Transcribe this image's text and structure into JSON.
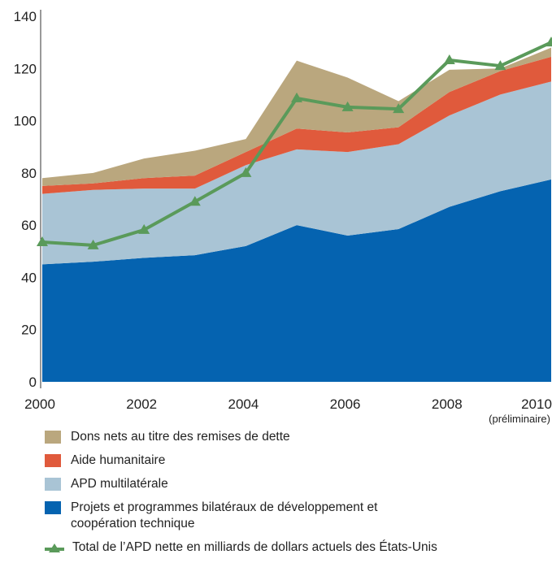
{
  "chart_data": {
    "type": "stacked-area-line",
    "x": [
      2000,
      2001,
      2002,
      2003,
      2004,
      2005,
      2006,
      2007,
      2008,
      2009,
      2010
    ],
    "xlim": [
      2000,
      2010
    ],
    "xticks": [
      2000,
      2002,
      2004,
      2006,
      2008,
      2010
    ],
    "annotation": "(préliminaire)",
    "ylim": [
      0,
      140
    ],
    "yticks": [
      0,
      20,
      40,
      60,
      80,
      100,
      120,
      140
    ],
    "series": [
      {
        "name": "Projets et programmes bilatéraux de développement et coopération technique",
        "color": "#0563b0",
        "kind": "area",
        "values": [
          45,
          46,
          47.5,
          48.5,
          52,
          60,
          56,
          58.5,
          67,
          73,
          77.5
        ]
      },
      {
        "name": "APD multilatérale",
        "color": "#a9c4d5",
        "kind": "area",
        "values": [
          27,
          27.5,
          26.5,
          25.5,
          31,
          29,
          32,
          32.5,
          35,
          37,
          37.5
        ]
      },
      {
        "name": "Aide humanitaire",
        "color": "#e05a3c",
        "kind": "area",
        "values": [
          3,
          2.5,
          4,
          5,
          5,
          8,
          7.5,
          6.5,
          9,
          9,
          9.5
        ]
      },
      {
        "name": "Dons nets au titre des remises de dette",
        "color": "#baa77e",
        "kind": "area",
        "values": [
          3,
          4,
          7.5,
          9.5,
          5,
          26,
          21,
          10,
          8.5,
          1,
          3.5
        ]
      },
      {
        "name": "Total de l’APD nette en milliards de dollars actuels des États-Unis",
        "color": "#5a9a5a",
        "kind": "line",
        "values": [
          53.5,
          52.3,
          58.2,
          69,
          80,
          108.6,
          105.2,
          104.5,
          123.2,
          121,
          130
        ]
      }
    ]
  }
}
